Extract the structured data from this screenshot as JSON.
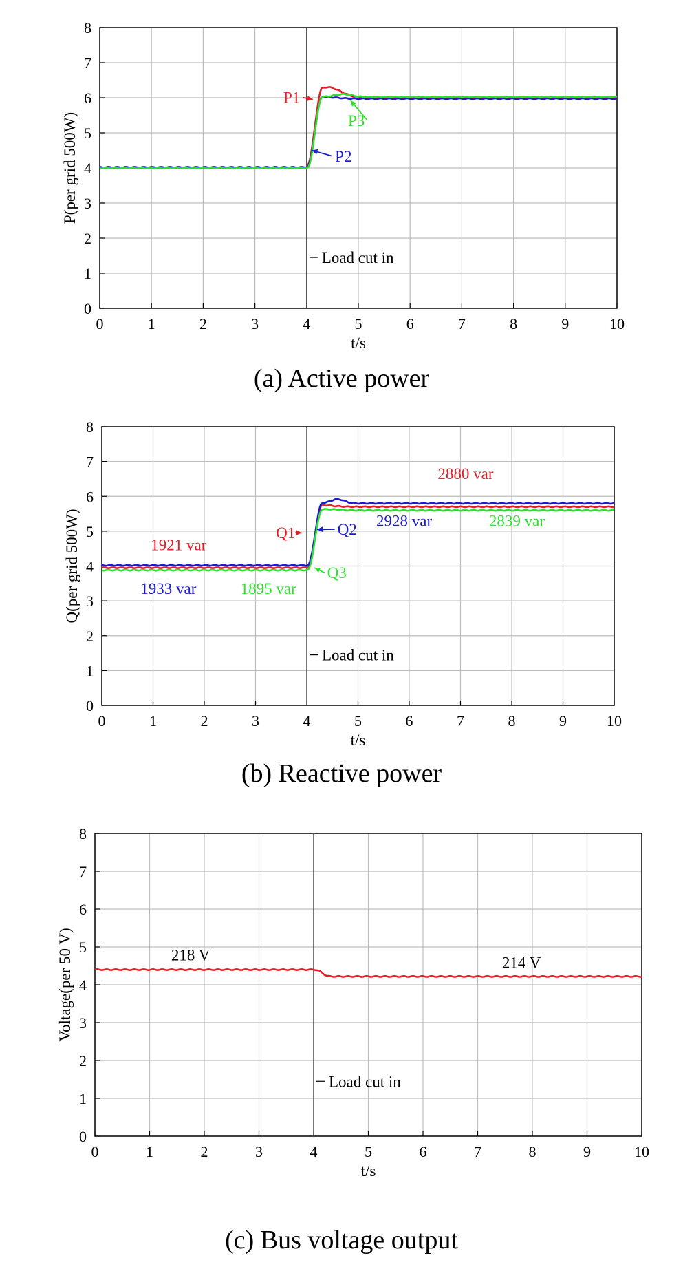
{
  "colors": {
    "red": "#e3202a",
    "blue": "#1c1ccf",
    "green": "#2ee02e",
    "grid": "#bdbdbd",
    "axis": "#000000",
    "marker": "#444444"
  },
  "chart_data": [
    {
      "type": "line",
      "caption": "(a) Active power",
      "xlabel": "t/s",
      "ylabel": "P(per grid 500W)",
      "xlim": [
        0,
        10
      ],
      "ylim": [
        0,
        8
      ],
      "xticks": [
        0,
        1,
        2,
        3,
        4,
        5,
        6,
        7,
        8,
        9,
        10
      ],
      "yticks": [
        0,
        1,
        2,
        3,
        4,
        5,
        6,
        7,
        8
      ],
      "grid": true,
      "event": {
        "x": 4,
        "label": "Load cut in"
      },
      "series": [
        {
          "name": "P1",
          "color": "red",
          "before": 4.0,
          "after": 6.0,
          "overshoot": 0.3,
          "peakT": 4.4,
          "settleT": 5.0
        },
        {
          "name": "P2",
          "color": "blue",
          "before": 4.02,
          "after": 5.97,
          "overshoot": 0.05,
          "peakT": 4.35,
          "settleT": 4.9
        },
        {
          "name": "P3",
          "color": "green",
          "before": 4.0,
          "after": 6.02,
          "overshoot": 0.08,
          "peakT": 4.7,
          "settleT": 5.1
        }
      ],
      "annotations": [
        {
          "text": "P1",
          "color": "red",
          "x": 3.55,
          "y": 5.85,
          "ax": 4.12,
          "ay": 5.95
        },
        {
          "text": "P2",
          "color": "blue",
          "x": 4.55,
          "y": 4.18,
          "ax": 4.1,
          "ay": 4.5
        },
        {
          "text": "P3",
          "color": "green",
          "x": 4.8,
          "y": 5.2,
          "ax": 4.85,
          "ay": 5.92
        }
      ]
    },
    {
      "type": "line",
      "caption": "(b) Reactive power",
      "xlabel": "t/s",
      "ylabel": "Q(per grid 500W)",
      "xlim": [
        0,
        10
      ],
      "ylim": [
        0,
        8
      ],
      "xticks": [
        0,
        1,
        2,
        3,
        4,
        5,
        6,
        7,
        8,
        9,
        10
      ],
      "yticks": [
        0,
        1,
        2,
        3,
        4,
        5,
        6,
        7,
        8
      ],
      "grid": true,
      "event": {
        "x": 4,
        "label": "Load cut in"
      },
      "series": [
        {
          "name": "Q1",
          "color": "red",
          "before": 3.95,
          "after": 5.7,
          "overshoot": 0.05,
          "peakT": 4.25,
          "settleT": 4.8
        },
        {
          "name": "Q2",
          "color": "blue",
          "before": 4.02,
          "after": 5.8,
          "overshoot": 0.12,
          "peakT": 4.6,
          "settleT": 4.9
        },
        {
          "name": "Q3",
          "color": "green",
          "before": 3.88,
          "after": 5.6,
          "overshoot": 0.03,
          "peakT": 4.4,
          "settleT": 4.9
        }
      ],
      "annotations": [
        {
          "text": "Q1",
          "color": "red",
          "x": 3.4,
          "y": 4.8,
          "ax": 3.9,
          "ay": 4.95
        },
        {
          "text": "Q2",
          "color": "blue",
          "x": 4.6,
          "y": 4.9,
          "ax": 4.2,
          "ay": 5.05
        },
        {
          "text": "Q3",
          "color": "green",
          "x": 4.4,
          "y": 3.65,
          "ax": 4.15,
          "ay": 3.95
        }
      ],
      "value_labels": [
        {
          "text": "1921 var",
          "color": "red",
          "x": 1.5,
          "y": 4.45
        },
        {
          "text": "1933 var",
          "color": "blue",
          "x": 1.3,
          "y": 3.2
        },
        {
          "text": "1895 var",
          "color": "green",
          "x": 3.25,
          "y": 3.2
        },
        {
          "text": "2880 var",
          "color": "red",
          "x": 7.1,
          "y": 6.5
        },
        {
          "text": "2928 var",
          "color": "blue",
          "x": 5.9,
          "y": 5.15
        },
        {
          "text": "2839 var",
          "color": "green",
          "x": 8.1,
          "y": 5.15
        }
      ]
    },
    {
      "type": "line",
      "caption": "(c) Bus voltage output",
      "xlabel": "t/s",
      "ylabel": "Voltage(per 50 V)",
      "xlim": [
        0,
        10
      ],
      "ylim": [
        0,
        8
      ],
      "xticks": [
        0,
        1,
        2,
        3,
        4,
        5,
        6,
        7,
        8,
        9,
        10
      ],
      "yticks": [
        0,
        1,
        2,
        3,
        4,
        5,
        6,
        7,
        8
      ],
      "grid": true,
      "event": {
        "x": 4,
        "label": "Load cut in"
      },
      "series": [
        {
          "name": "Voltage",
          "color": "red",
          "before": 4.4,
          "after": 4.22,
          "overshoot": 0,
          "peakT": 4.1,
          "settleT": 4.3
        }
      ],
      "annotations": [],
      "value_labels": [
        {
          "text": "218 V",
          "color": "black",
          "x": 1.75,
          "y": 4.65
        },
        {
          "text": "214 V",
          "color": "black",
          "x": 7.8,
          "y": 4.45
        }
      ]
    }
  ]
}
